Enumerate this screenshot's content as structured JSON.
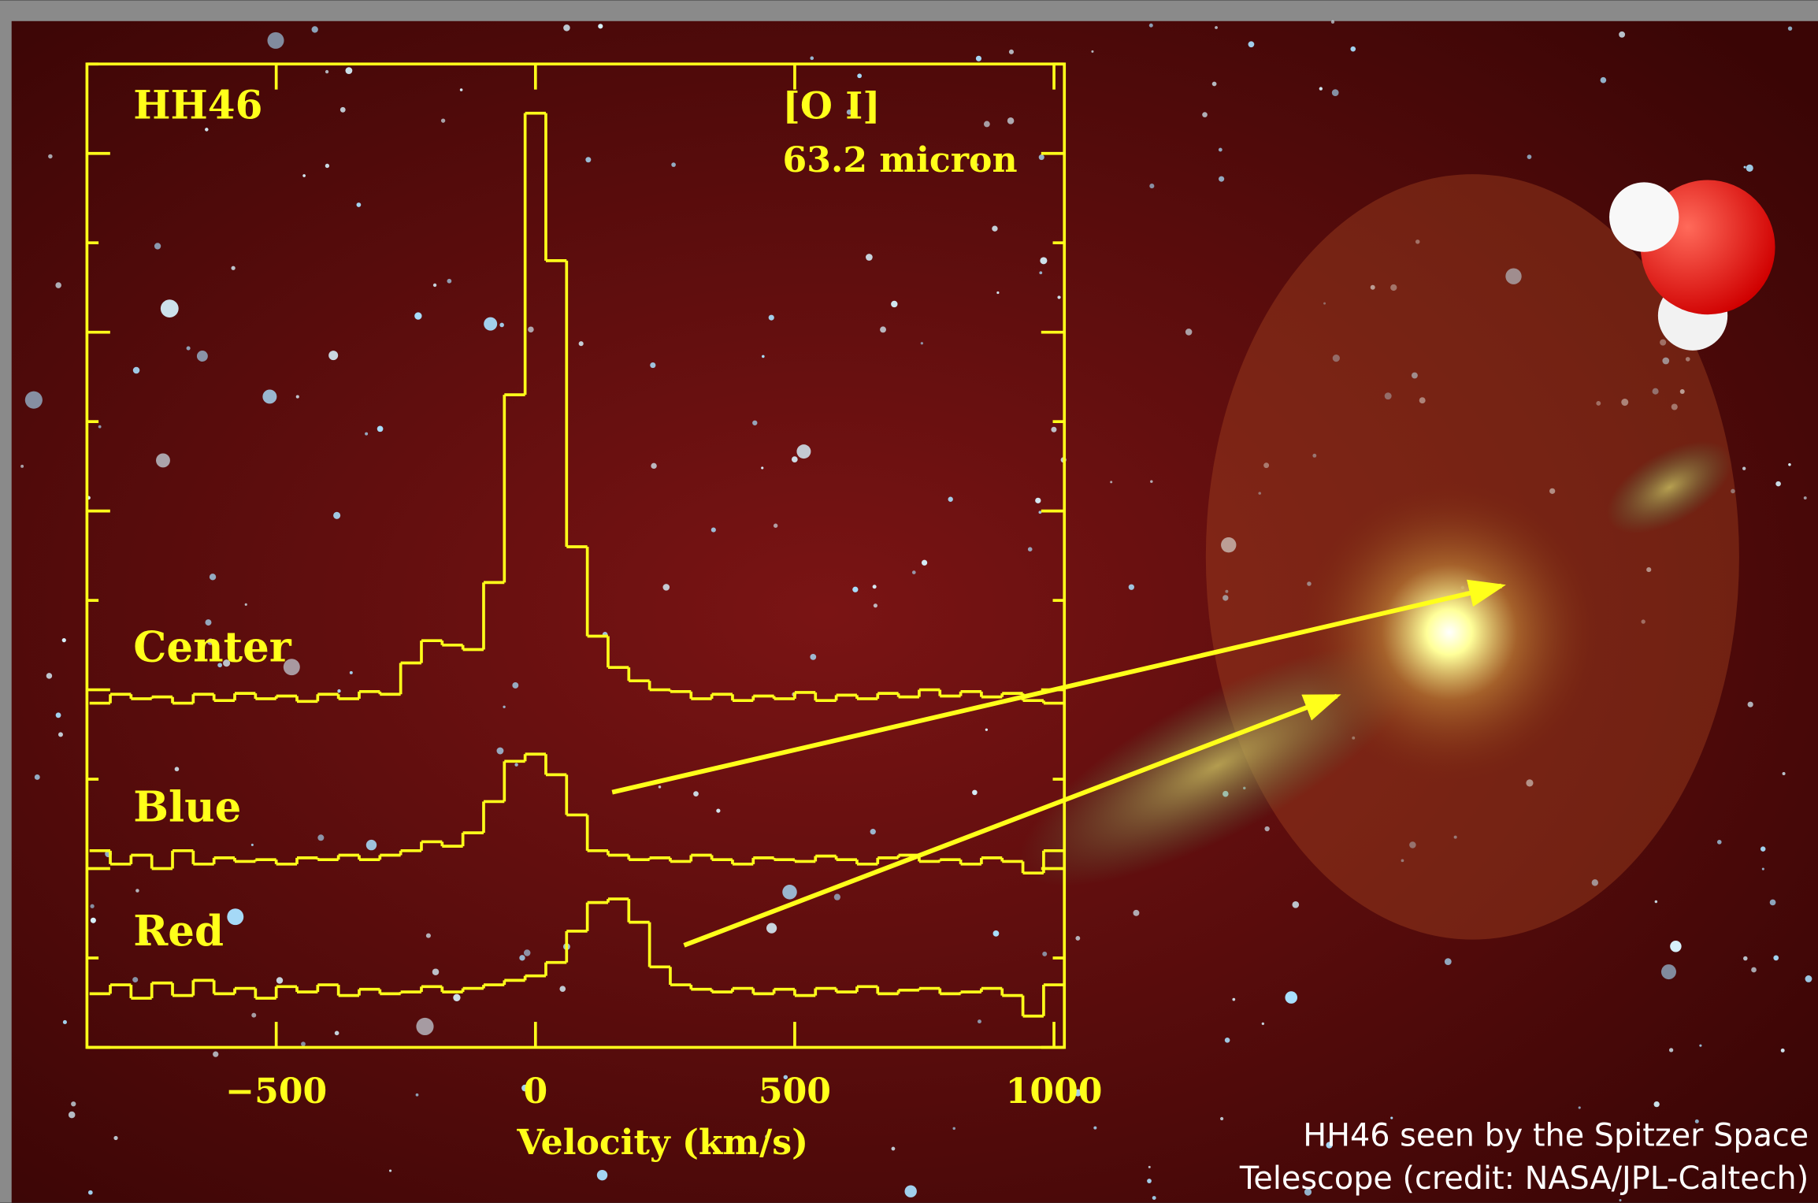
{
  "chart_data": {
    "type": "step",
    "annotations": [
      "HH46",
      "[O I]",
      "63.2 micron"
    ],
    "x_label": "Velocity (km/s)",
    "xlim": [
      -865,
      1020
    ],
    "ylim": [
      0,
      11
    ],
    "xticks": [
      {
        "value": -500,
        "label": "−500"
      },
      0,
      500,
      1000
    ],
    "yticks": [
      0,
      1,
      2,
      3,
      4,
      5,
      6,
      7,
      8,
      9,
      10,
      11
    ],
    "color": "#ffff1a",
    "x": [
      -840,
      -800,
      -760,
      -720,
      -680,
      -640,
      -600,
      -560,
      -520,
      -480,
      -440,
      -400,
      -360,
      -320,
      -280,
      -240,
      -200,
      -160,
      -120,
      -80,
      -40,
      0,
      40,
      80,
      120,
      160,
      200,
      240,
      280,
      320,
      360,
      400,
      440,
      480,
      520,
      560,
      600,
      640,
      680,
      720,
      760,
      800,
      840,
      880,
      920,
      960,
      1000
    ],
    "series": [
      {
        "name": "Center",
        "values": [
          3.85,
          3.95,
          3.9,
          3.92,
          3.85,
          3.95,
          3.88,
          3.96,
          3.9,
          3.93,
          3.87,
          3.95,
          3.9,
          3.98,
          3.95,
          4.3,
          4.55,
          4.5,
          4.45,
          5.2,
          7.3,
          10.45,
          8.8,
          5.6,
          4.6,
          4.25,
          4.1,
          4.0,
          3.98,
          3.9,
          3.95,
          3.88,
          3.93,
          3.9,
          3.97,
          3.88,
          3.94,
          3.9,
          3.96,
          3.92,
          4.0,
          3.93,
          3.98,
          3.92,
          3.96,
          3.88,
          3.85
        ]
      },
      {
        "name": "Blue",
        "values": [
          2.2,
          2.05,
          2.15,
          2.0,
          2.2,
          2.05,
          2.12,
          2.08,
          2.1,
          2.05,
          2.12,
          2.1,
          2.15,
          2.1,
          2.15,
          2.2,
          2.3,
          2.25,
          2.4,
          2.75,
          3.2,
          3.28,
          3.05,
          2.6,
          2.2,
          2.15,
          2.1,
          2.12,
          2.08,
          2.15,
          2.1,
          2.05,
          2.12,
          2.1,
          2.08,
          2.14,
          2.1,
          2.05,
          2.12,
          2.15,
          2.08,
          2.1,
          2.05,
          2.12,
          2.08,
          1.95,
          2.2
        ]
      },
      {
        "name": "Red",
        "values": [
          0.6,
          0.7,
          0.55,
          0.72,
          0.58,
          0.75,
          0.6,
          0.66,
          0.55,
          0.68,
          0.62,
          0.7,
          0.58,
          0.65,
          0.6,
          0.62,
          0.68,
          0.62,
          0.66,
          0.7,
          0.75,
          0.8,
          0.95,
          1.3,
          1.62,
          1.66,
          1.4,
          0.9,
          0.7,
          0.65,
          0.62,
          0.66,
          0.6,
          0.65,
          0.58,
          0.66,
          0.62,
          0.68,
          0.6,
          0.64,
          0.66,
          0.6,
          0.62,
          0.66,
          0.58,
          0.35,
          0.7
        ]
      }
    ]
  },
  "caption": [
    "HH46 seen by the Spitzer Space",
    "Telescope (credit: NASA/JPL-Caltech)"
  ]
}
